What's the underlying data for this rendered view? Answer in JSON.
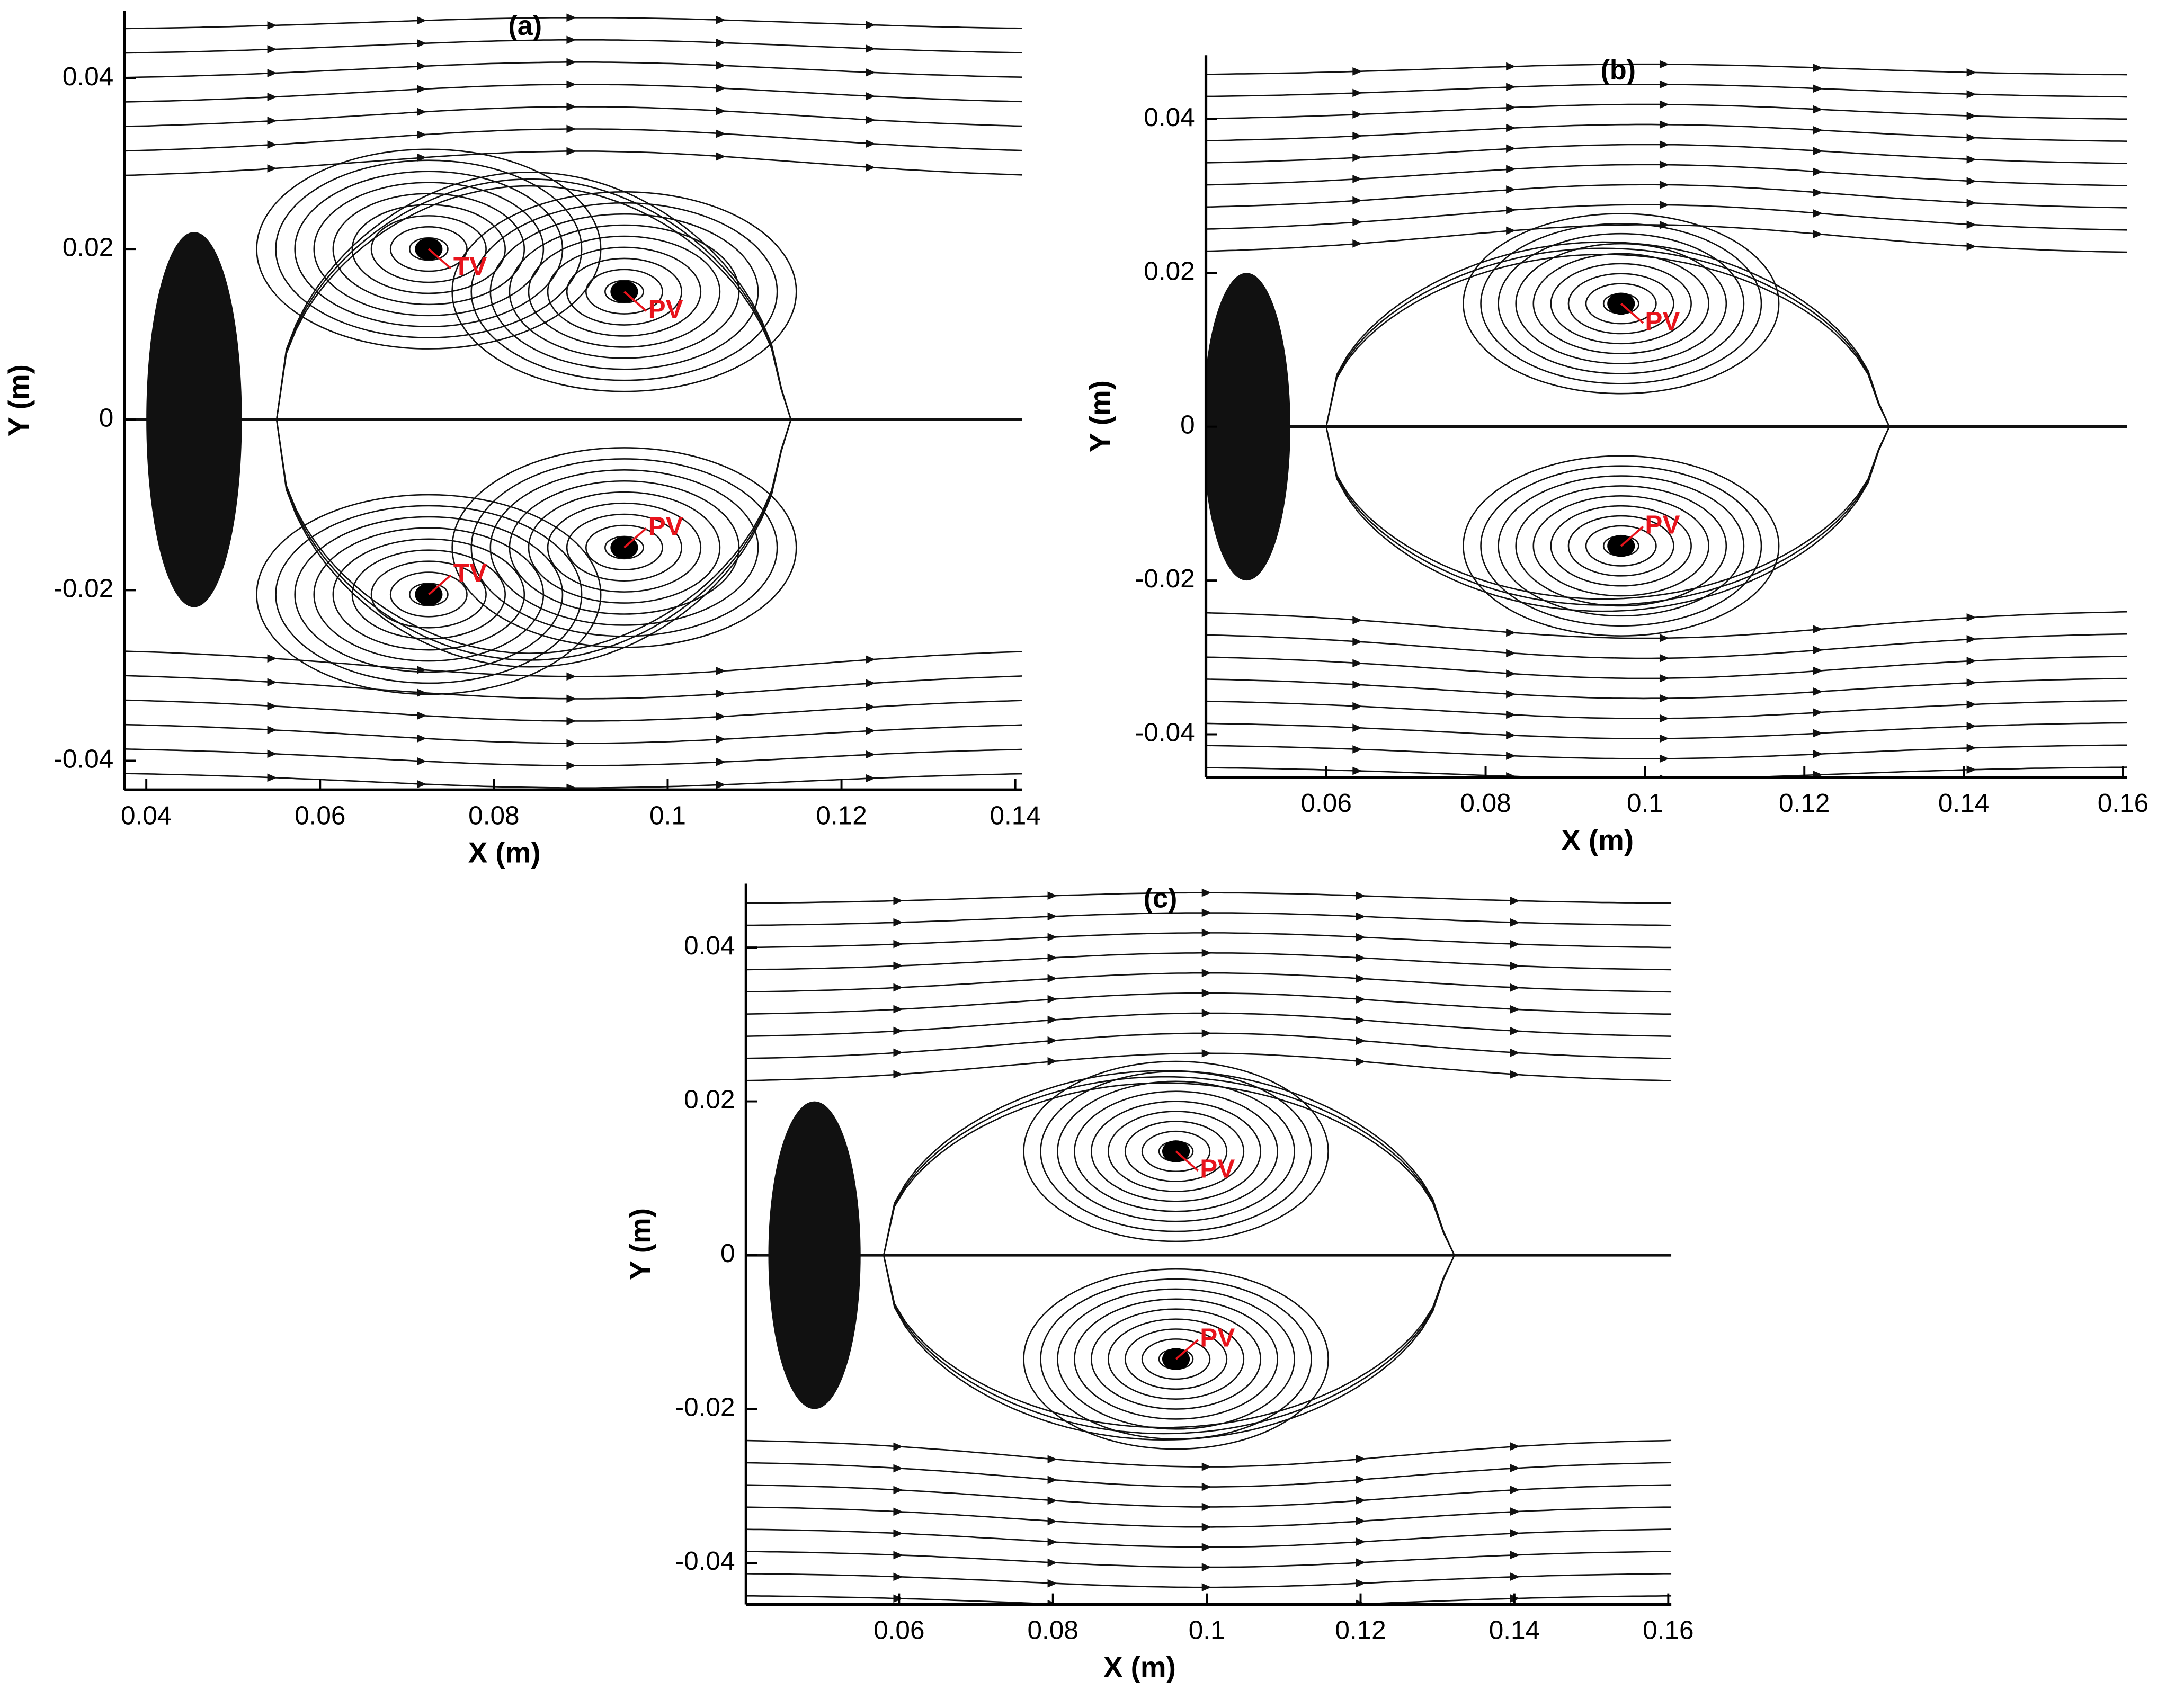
{
  "chart_data": [
    {
      "type": "streamline",
      "title": "(a)",
      "x_label": "X (m)",
      "y_label": "Y (m)",
      "xlim": [
        0.0375,
        0.1408
      ],
      "ylim": [
        -0.0434,
        0.0479
      ],
      "xticks": [
        0.04,
        0.06,
        0.08,
        0.1,
        0.12,
        0.14
      ],
      "yticks": [
        -0.04,
        -0.02,
        0,
        0.02,
        0.04
      ],
      "annotations": [
        {
          "text": "TV",
          "x": 0.0725,
          "y": 0.02
        },
        {
          "text": "PV",
          "x": 0.095,
          "y": 0.015
        },
        {
          "text": "PV",
          "x": 0.095,
          "y": -0.015
        },
        {
          "text": "TV",
          "x": 0.0725,
          "y": -0.0205
        }
      ]
    },
    {
      "type": "streamline",
      "title": "(b)",
      "x_label": "X (m)",
      "y_label": "Y (m)",
      "xlim": [
        0.0449,
        0.1605
      ],
      "ylim": [
        -0.0456,
        0.0483
      ],
      "xticks": [
        0.06,
        0.08,
        0.1,
        0.12,
        0.14,
        0.16
      ],
      "yticks": [
        -0.04,
        -0.02,
        0,
        0.02,
        0.04
      ],
      "annotations": [
        {
          "text": "PV",
          "x": 0.097,
          "y": 0.016
        },
        {
          "text": "PV",
          "x": 0.097,
          "y": -0.0155
        }
      ]
    },
    {
      "type": "streamline",
      "title": "(c)",
      "x_label": "X (m)",
      "y_label": "Y (m)",
      "xlim": [
        0.0401,
        0.1604
      ],
      "ylim": [
        -0.0454,
        0.0483
      ],
      "xticks": [
        0.06,
        0.08,
        0.1,
        0.12,
        0.14,
        0.16
      ],
      "yticks": [
        -0.04,
        -0.02,
        0,
        0.02,
        0.04
      ],
      "annotations": [
        {
          "text": "PV",
          "x": 0.096,
          "y": 0.0135
        },
        {
          "text": "PV",
          "x": 0.096,
          "y": -0.0135
        }
      ]
    }
  ]
}
